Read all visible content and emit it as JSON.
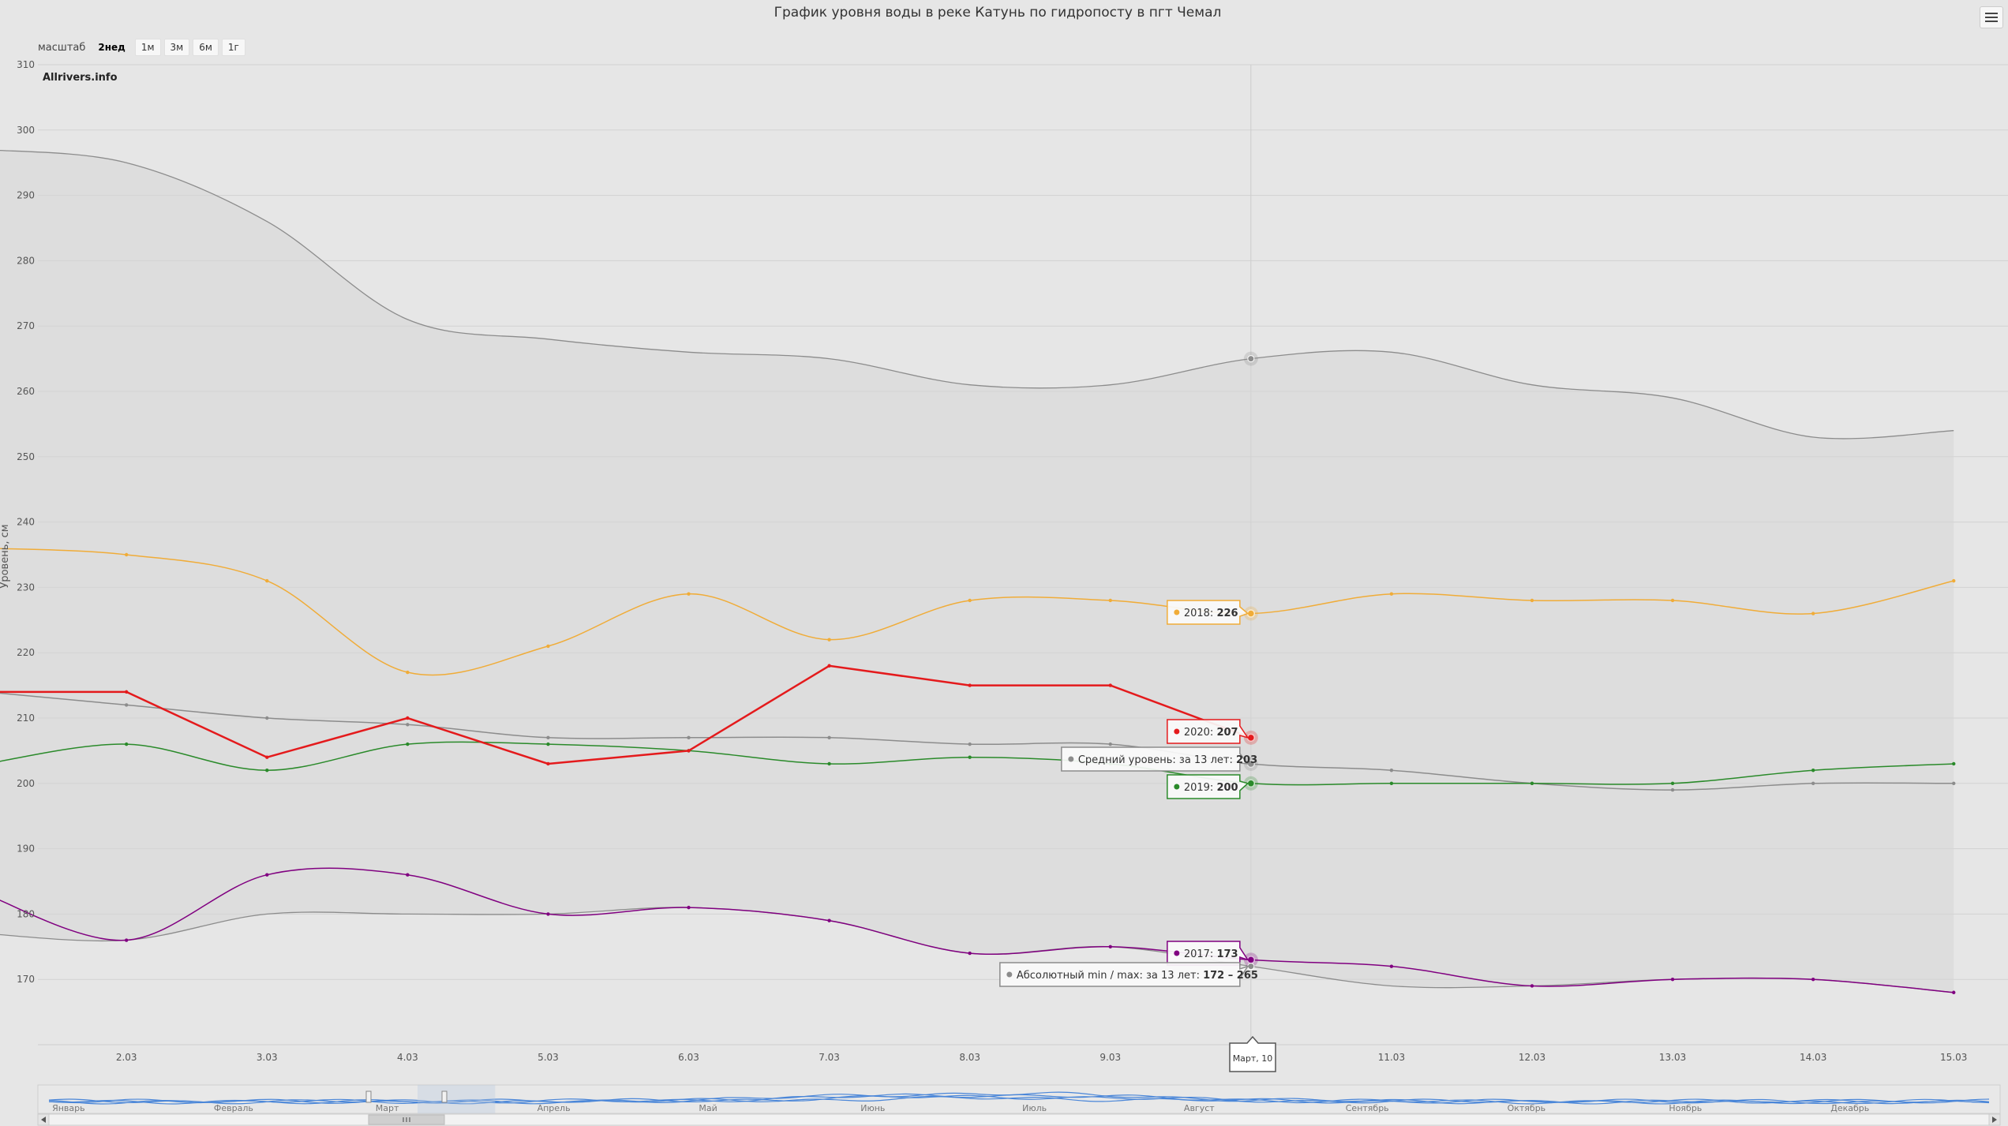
{
  "header": {
    "title": "График уровня воды в реке Катунь по гидропосту в пгт Чемал",
    "menu_icon": "hamburger-menu-icon"
  },
  "zoom": {
    "label": "масштаб",
    "buttons": [
      "2нед",
      "1м",
      "3м",
      "6м",
      "1г"
    ],
    "active": "2нед"
  },
  "credit": "Allrivers.info",
  "crosshair_label": "Март, 10",
  "navigator": {
    "months": [
      "Январь",
      "Февраль",
      "Март",
      "Апрель",
      "Май",
      "Июнь",
      "Июль",
      "Август",
      "Сентябрь",
      "Октябрь",
      "Ноябрь",
      "Декабрь"
    ],
    "range": [
      0.19,
      0.23
    ]
  },
  "tooltips": {
    "s2018": "2018:",
    "s2020": "2020:",
    "avg": "Средний уровень: за 13 лет:",
    "s2019": "2019:",
    "s2017": "2017:",
    "minmax": "Абсолютный min / max: за 13 лет:",
    "v2018": "226",
    "v2020": "207",
    "vavg": "203",
    "v2019": "200",
    "v2017": "173",
    "vminmax": "172 – 265"
  },
  "chart_data": {
    "type": "line",
    "title": "График уровня воды в реке Катунь по гидропосту в пгт Чемал",
    "ylabel": "Уровень, см",
    "ylim": [
      160,
      310
    ],
    "yticks": [
      170,
      180,
      190,
      200,
      210,
      220,
      230,
      240,
      250,
      260,
      270,
      280,
      290,
      300,
      310
    ],
    "x_dates": [
      "1.03",
      "2.03",
      "3.03",
      "4.03",
      "5.03",
      "6.03",
      "7.03",
      "8.03",
      "9.03",
      "10.03",
      "11.03",
      "12.03",
      "13.03",
      "14.03",
      "15.03"
    ],
    "xticks": [
      "2.03",
      "3.03",
      "4.03",
      "5.03",
      "6.03",
      "7.03",
      "8.03",
      "9.03",
      "10.03",
      "11.03",
      "12.03",
      "13.03",
      "14.03",
      "15.03"
    ],
    "range": {
      "min": [
        177,
        176,
        180,
        180,
        180,
        181,
        179,
        174,
        175,
        172,
        169,
        169,
        170,
        170,
        168
      ],
      "max": [
        297,
        295,
        286,
        271,
        268,
        266,
        265,
        261,
        261,
        265,
        266,
        261,
        259,
        253,
        254
      ]
    },
    "series": [
      {
        "name": "2018",
        "color": "#f0ac38",
        "smooth": true,
        "values": [
          236,
          235,
          231,
          217,
          221,
          229,
          222,
          228,
          228,
          226,
          229,
          228,
          228,
          226,
          231
        ]
      },
      {
        "name": "Средний уровень",
        "color": "#8c8c8c",
        "smooth": true,
        "values": [
          214,
          212,
          210,
          209,
          207,
          207,
          207,
          206,
          206,
          203,
          202,
          200,
          199,
          200,
          200
        ]
      },
      {
        "name": "2019",
        "color": "#2a8a2a",
        "smooth": true,
        "values": [
          203,
          206,
          202,
          206,
          206,
          205,
          203,
          204,
          203,
          200,
          200,
          200,
          200,
          202,
          203
        ]
      },
      {
        "name": "2017",
        "color": "#800080",
        "smooth": true,
        "values": [
          183,
          176,
          186,
          186,
          180,
          181,
          179,
          174,
          175,
          173,
          172,
          169,
          170,
          170,
          168
        ]
      },
      {
        "name": "2020",
        "color": "#e41a1c",
        "smooth": false,
        "values": [
          214,
          214,
          204,
          210,
          203,
          205,
          218,
          215,
          215,
          207,
          null,
          null,
          null,
          null,
          null
        ]
      }
    ]
  }
}
